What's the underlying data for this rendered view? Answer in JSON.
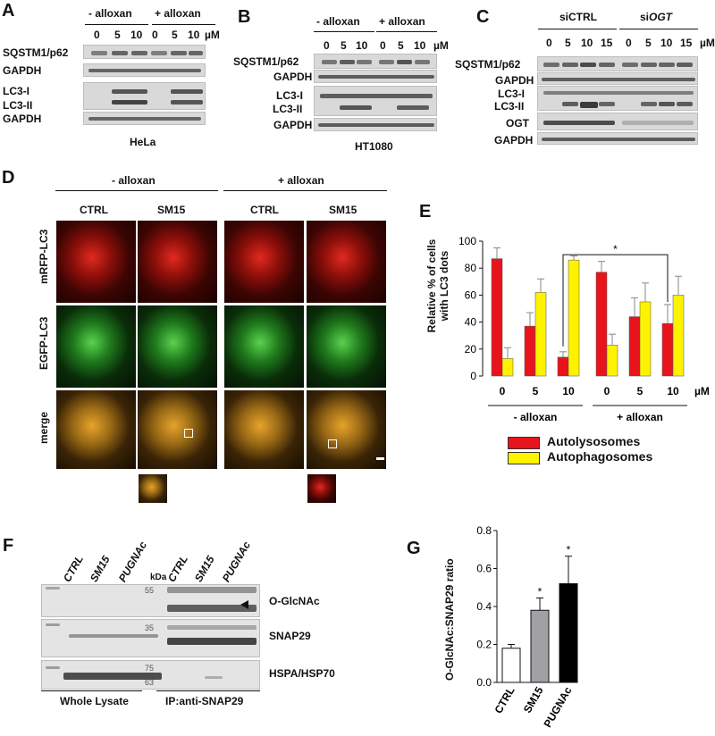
{
  "panels": {
    "A": "A",
    "B": "B",
    "C": "C",
    "D": "D",
    "E": "E",
    "F": "F",
    "G": "G"
  },
  "a": {
    "minus": "- alloxan",
    "plus": "+ alloxan",
    "doses": [
      "0",
      "5",
      "10",
      "0",
      "5",
      "10"
    ],
    "unit": "µM",
    "rows": [
      "SQSTM1/p62",
      "GAPDH",
      "LC3-I",
      "LC3-II",
      "GAPDH"
    ],
    "caption": "HeLa"
  },
  "b": {
    "minus": "- alloxan",
    "plus": "+ alloxan",
    "doses": [
      "0",
      "5",
      "10",
      "0",
      "5",
      "10"
    ],
    "unit": "µM",
    "rows": [
      "SQSTM1/p62",
      "GAPDH",
      "LC3-I",
      "LC3-II",
      "GAPDH"
    ],
    "caption": "HT1080"
  },
  "c": {
    "g1": "siCTRL",
    "g2_pre": "si",
    "g2_it": "OGT",
    "doses": [
      "0",
      "5",
      "10",
      "15",
      "0",
      "5",
      "10",
      "15"
    ],
    "unit": "µM",
    "rows": [
      "SQSTM1/p62",
      "GAPDH",
      "LC3-I",
      "LC3-II",
      "OGT",
      "GAPDH"
    ]
  },
  "d": {
    "minus": "- alloxan",
    "plus": "+ alloxan",
    "cols": [
      "CTRL",
      "SM15",
      "CTRL",
      "SM15"
    ],
    "rows": [
      "mRFP-LC3",
      "EGFP-LC3",
      "merge"
    ]
  },
  "chart_data": {
    "type": "bar",
    "ylabel": "Relative % of cells with LC3 dots",
    "ylabel_l1": "Relative % of cells",
    "ylabel_l2": "with LC3 dots",
    "ylim": [
      0,
      100
    ],
    "yticks": [
      "0",
      "20",
      "40",
      "60",
      "80",
      "100"
    ],
    "categories": [
      "0",
      "5",
      "10",
      "0",
      "5",
      "10"
    ],
    "unit": "µM",
    "groups": [
      "- alloxan",
      "+ alloxan"
    ],
    "series": [
      {
        "name": "Autolysosomes",
        "color": "#e8141b",
        "values": [
          87,
          37,
          14,
          77,
          44,
          39
        ],
        "errors": [
          8,
          10,
          4,
          8,
          14,
          14
        ]
      },
      {
        "name": "Autophagosomes",
        "color": "#fdf200",
        "values": [
          13,
          62,
          86,
          23,
          55,
          60
        ],
        "errors": [
          8,
          10,
          3,
          8,
          14,
          14
        ]
      }
    ],
    "annotation": "*",
    "legend_position": "bottom"
  },
  "f": {
    "left_lanes": [
      "CTRL",
      "SM15",
      "PUGNAc"
    ],
    "right_lanes": [
      "CTRL",
      "SM15",
      "PUGNAc"
    ],
    "kda": "kDa",
    "markers": [
      "55",
      "35",
      "75",
      "63"
    ],
    "rows": [
      "O-GlcNAc",
      "SNAP29",
      "HSPA/HSP70"
    ],
    "left_caption": "Whole Lysate",
    "right_caption": "IP:anti-SNAP29"
  },
  "chart_data_g": {
    "type": "bar",
    "ylabel": "O-GlcNAc:SNAP29 ratio",
    "ylim": [
      0,
      0.8
    ],
    "yticks": [
      "0.0",
      "0.2",
      "0.4",
      "0.6",
      "0.8"
    ],
    "categories": [
      "CTRL",
      "SM15",
      "PUGNAc"
    ],
    "values": [
      0.18,
      0.38,
      0.52
    ],
    "errors": [
      0.02,
      0.065,
      0.145
    ],
    "colors": [
      "#ffffff",
      "#a0a0a5",
      "#000000"
    ],
    "stars": [
      "",
      "*",
      "*"
    ]
  }
}
